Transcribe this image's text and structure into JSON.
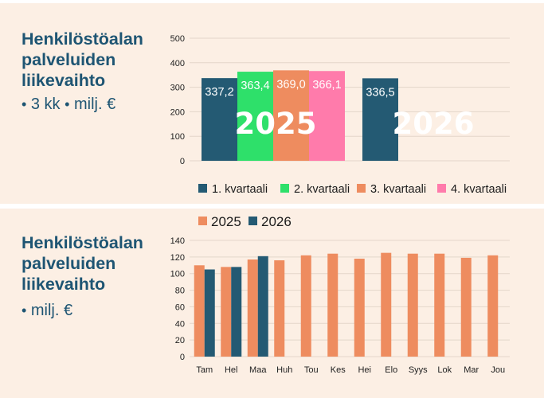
{
  "top": {
    "title_lines": [
      "Henkilöstöalan",
      "palveluiden",
      "liikevaihto"
    ],
    "subtitle_parts": [
      "•",
      "3 kk",
      "•",
      "milj. €"
    ]
  },
  "bottom": {
    "title_lines": [
      "Henkilöstöalan",
      "palveluiden",
      "liikevaihto"
    ],
    "subtitle_parts": [
      "•",
      "milj. €"
    ]
  },
  "chart_data": [
    {
      "type": "bar",
      "title": "",
      "xlabel": "",
      "ylabel": "",
      "ylim": [
        0,
        500
      ],
      "yticks": [
        0,
        100,
        200,
        300,
        400,
        500
      ],
      "grid": true,
      "legend_position": "bottom",
      "groups": [
        "2025",
        "2026"
      ],
      "series": [
        {
          "name": "1. kvartaali",
          "color": "#245a73",
          "values": [
            337.2,
            336.5
          ],
          "labels": [
            "337,2",
            "336,5"
          ]
        },
        {
          "name": "2. kvartaali",
          "color": "#2ee06a",
          "values": [
            363.4,
            null
          ],
          "labels": [
            "363,4",
            ""
          ]
        },
        {
          "name": "3. kvartaali",
          "color": "#ee8c5f",
          "values": [
            369.0,
            null
          ],
          "labels": [
            "369,0",
            ""
          ]
        },
        {
          "name": "4. kvartaali",
          "color": "#ff7bab",
          "values": [
            366.1,
            null
          ],
          "labels": [
            "366,1",
            ""
          ]
        }
      ]
    },
    {
      "type": "bar",
      "title": "",
      "xlabel": "",
      "ylabel": "",
      "ylim": [
        0,
        140
      ],
      "yticks": [
        0,
        20,
        40,
        60,
        80,
        100,
        120,
        140
      ],
      "grid": true,
      "legend_position": "top",
      "categories": [
        "Tam",
        "Hel",
        "Maa",
        "Huh",
        "Tou",
        "Kes",
        "Hei",
        "Elo",
        "Syys",
        "Lok",
        "Mar",
        "Jou"
      ],
      "series": [
        {
          "name": "2025",
          "color": "#ee8c5f",
          "values": [
            110,
            108,
            117,
            116,
            122,
            124,
            118,
            125,
            124,
            124,
            119,
            122
          ]
        },
        {
          "name": "2026",
          "color": "#245a73",
          "values": [
            105,
            108,
            121,
            null,
            null,
            null,
            null,
            null,
            null,
            null,
            null,
            null
          ]
        }
      ]
    }
  ]
}
